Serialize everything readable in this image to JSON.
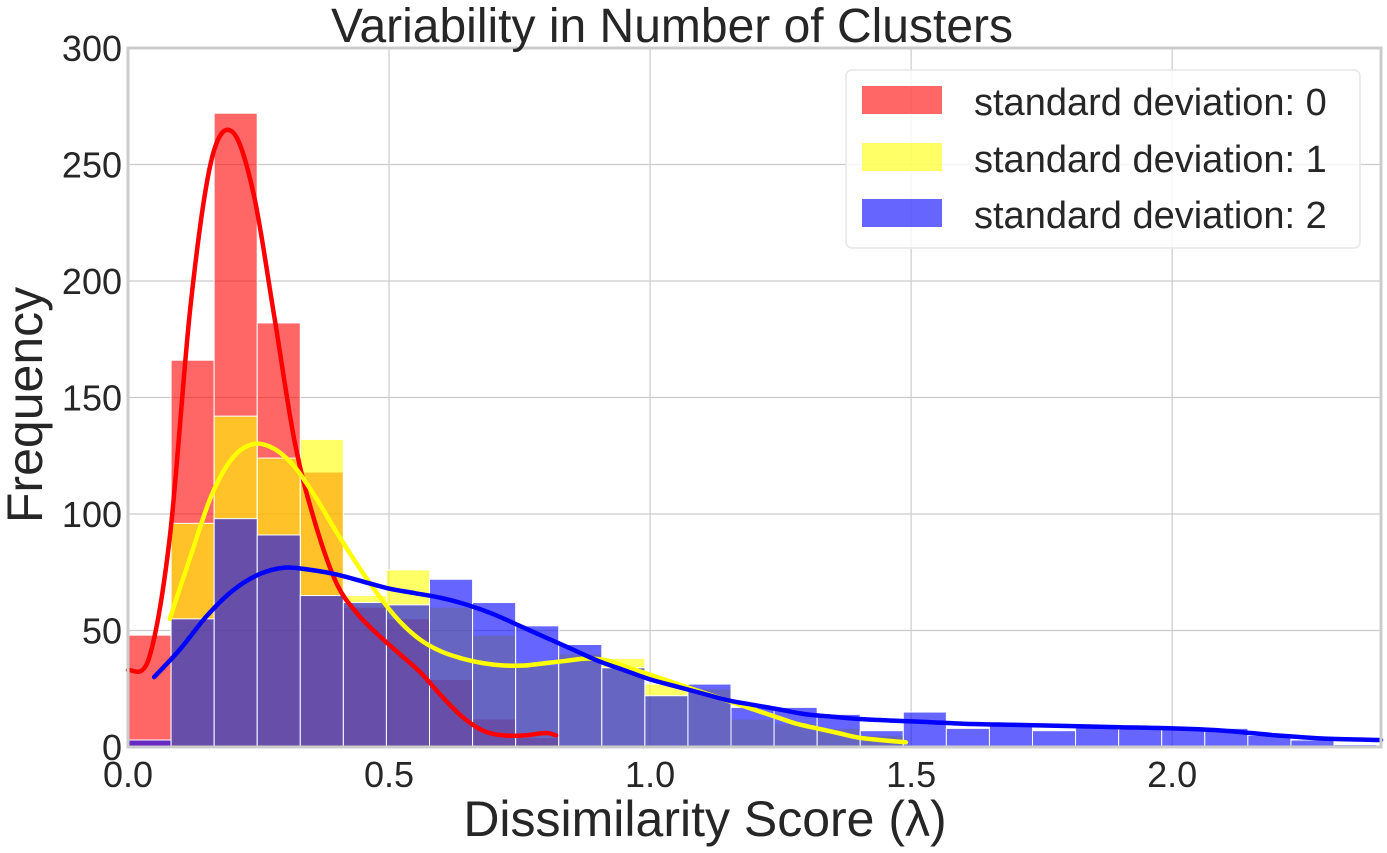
{
  "chart_data": {
    "type": "histogram",
    "title": "Variability in Number of Clusters",
    "xlabel": "Dissimilarity Score (λ)",
    "ylabel": "Frequency",
    "xlim": [
      0.0,
      2.4
    ],
    "ylim": [
      0,
      300
    ],
    "xticks": [
      0.0,
      0.5,
      1.0,
      1.5,
      2.0
    ],
    "xtick_labels": [
      "0.0",
      "0.5",
      "1.0",
      "1.5",
      "2.0"
    ],
    "yticks": [
      0,
      50,
      100,
      150,
      200,
      250,
      300
    ],
    "ytick_labels": [
      "0",
      "50",
      "100",
      "150",
      "200",
      "250",
      "300"
    ],
    "grid": true,
    "legend_position": "top-right",
    "bar_opacity": 0.6,
    "series": [
      {
        "name": "standard deviation: 0",
        "color": "#ff0000",
        "bin_width": 0.0825,
        "bins": [
          {
            "x": 0.0,
            "value": 48
          },
          {
            "x": 0.0825,
            "value": 166
          },
          {
            "x": 0.165,
            "value": 272
          },
          {
            "x": 0.2475,
            "value": 182
          },
          {
            "x": 0.33,
            "value": 118
          },
          {
            "x": 0.4125,
            "value": 60
          },
          {
            "x": 0.495,
            "value": 55
          },
          {
            "x": 0.5775,
            "value": 29
          },
          {
            "x": 0.66,
            "value": 12
          },
          {
            "x": 0.7425,
            "value": 4
          }
        ],
        "kde": [
          [
            0.0,
            33
          ],
          [
            0.04,
            38
          ],
          [
            0.08,
            90
          ],
          [
            0.12,
            190
          ],
          [
            0.16,
            252
          ],
          [
            0.2,
            264
          ],
          [
            0.24,
            238
          ],
          [
            0.28,
            185
          ],
          [
            0.32,
            130
          ],
          [
            0.36,
            95
          ],
          [
            0.4,
            70
          ],
          [
            0.44,
            57
          ],
          [
            0.48,
            48
          ],
          [
            0.52,
            40
          ],
          [
            0.56,
            32
          ],
          [
            0.6,
            22
          ],
          [
            0.64,
            13
          ],
          [
            0.68,
            7
          ],
          [
            0.72,
            5
          ],
          [
            0.76,
            5
          ],
          [
            0.8,
            6
          ],
          [
            0.82,
            5
          ]
        ]
      },
      {
        "name": "standard deviation: 1",
        "color": "#ffff00",
        "bin_width": 0.0825,
        "bins": [
          {
            "x": 0.0825,
            "value": 96
          },
          {
            "x": 0.165,
            "value": 142
          },
          {
            "x": 0.2475,
            "value": 124
          },
          {
            "x": 0.33,
            "value": 132
          },
          {
            "x": 0.4125,
            "value": 65
          },
          {
            "x": 0.495,
            "value": 76
          },
          {
            "x": 0.5775,
            "value": 60
          },
          {
            "x": 0.66,
            "value": 48
          },
          {
            "x": 0.7425,
            "value": 35
          },
          {
            "x": 0.825,
            "value": 40
          },
          {
            "x": 0.9075,
            "value": 38
          },
          {
            "x": 0.99,
            "value": 27
          },
          {
            "x": 1.0725,
            "value": 25
          },
          {
            "x": 1.155,
            "value": 12
          },
          {
            "x": 1.2375,
            "value": 10
          },
          {
            "x": 1.32,
            "value": 8
          },
          {
            "x": 1.4025,
            "value": 5
          }
        ],
        "kde": [
          [
            0.08,
            55
          ],
          [
            0.12,
            82
          ],
          [
            0.16,
            108
          ],
          [
            0.2,
            124
          ],
          [
            0.24,
            130
          ],
          [
            0.28,
            128
          ],
          [
            0.32,
            120
          ],
          [
            0.36,
            107
          ],
          [
            0.4,
            92
          ],
          [
            0.44,
            78
          ],
          [
            0.48,
            65
          ],
          [
            0.52,
            54
          ],
          [
            0.56,
            46
          ],
          [
            0.6,
            41
          ],
          [
            0.64,
            38
          ],
          [
            0.68,
            36
          ],
          [
            0.72,
            35
          ],
          [
            0.76,
            35
          ],
          [
            0.8,
            36
          ],
          [
            0.84,
            37
          ],
          [
            0.88,
            38
          ],
          [
            0.92,
            37
          ],
          [
            0.96,
            34
          ],
          [
            1.0,
            31
          ],
          [
            1.04,
            28
          ],
          [
            1.08,
            25
          ],
          [
            1.12,
            22
          ],
          [
            1.16,
            19
          ],
          [
            1.2,
            16
          ],
          [
            1.24,
            13
          ],
          [
            1.28,
            10
          ],
          [
            1.32,
            8
          ],
          [
            1.36,
            6
          ],
          [
            1.4,
            4
          ],
          [
            1.44,
            3
          ],
          [
            1.49,
            2
          ]
        ]
      },
      {
        "name": "standard deviation: 2",
        "color": "#0000ff",
        "bin_width": 0.0825,
        "bins": [
          {
            "x": 0.0,
            "value": 3
          },
          {
            "x": 0.0825,
            "value": 55
          },
          {
            "x": 0.165,
            "value": 98
          },
          {
            "x": 0.2475,
            "value": 91
          },
          {
            "x": 0.33,
            "value": 65
          },
          {
            "x": 0.4125,
            "value": 62
          },
          {
            "x": 0.495,
            "value": 61
          },
          {
            "x": 0.5775,
            "value": 72
          },
          {
            "x": 0.66,
            "value": 62
          },
          {
            "x": 0.7425,
            "value": 52
          },
          {
            "x": 0.825,
            "value": 44
          },
          {
            "x": 0.9075,
            "value": 34
          },
          {
            "x": 0.99,
            "value": 22
          },
          {
            "x": 1.0725,
            "value": 27
          },
          {
            "x": 1.155,
            "value": 17
          },
          {
            "x": 1.2375,
            "value": 17
          },
          {
            "x": 1.32,
            "value": 14
          },
          {
            "x": 1.4025,
            "value": 7
          },
          {
            "x": 1.485,
            "value": 15
          },
          {
            "x": 1.5675,
            "value": 8
          },
          {
            "x": 1.65,
            "value": 9
          },
          {
            "x": 1.7325,
            "value": 7
          },
          {
            "x": 1.815,
            "value": 9
          },
          {
            "x": 1.8975,
            "value": 9
          },
          {
            "x": 1.98,
            "value": 8
          },
          {
            "x": 2.0625,
            "value": 8
          },
          {
            "x": 2.145,
            "value": 5
          },
          {
            "x": 2.2275,
            "value": 3
          },
          {
            "x": 2.31,
            "value": 1
          }
        ],
        "kde": [
          [
            0.05,
            30
          ],
          [
            0.1,
            42
          ],
          [
            0.15,
            56
          ],
          [
            0.2,
            67
          ],
          [
            0.25,
            74
          ],
          [
            0.3,
            77
          ],
          [
            0.35,
            76
          ],
          [
            0.4,
            74
          ],
          [
            0.45,
            71
          ],
          [
            0.5,
            68
          ],
          [
            0.55,
            66
          ],
          [
            0.6,
            64
          ],
          [
            0.65,
            61
          ],
          [
            0.7,
            57
          ],
          [
            0.75,
            52
          ],
          [
            0.8,
            47
          ],
          [
            0.85,
            42
          ],
          [
            0.9,
            37
          ],
          [
            0.95,
            33
          ],
          [
            1.0,
            29
          ],
          [
            1.05,
            26
          ],
          [
            1.1,
            23
          ],
          [
            1.15,
            20
          ],
          [
            1.2,
            18
          ],
          [
            1.25,
            16
          ],
          [
            1.3,
            14
          ],
          [
            1.35,
            13
          ],
          [
            1.4,
            12
          ],
          [
            1.5,
            11
          ],
          [
            1.6,
            10
          ],
          [
            1.7,
            9.5
          ],
          [
            1.8,
            9
          ],
          [
            1.9,
            8.5
          ],
          [
            2.0,
            8
          ],
          [
            2.1,
            7
          ],
          [
            2.2,
            5
          ],
          [
            2.3,
            3.5
          ],
          [
            2.4,
            3
          ]
        ]
      }
    ]
  }
}
